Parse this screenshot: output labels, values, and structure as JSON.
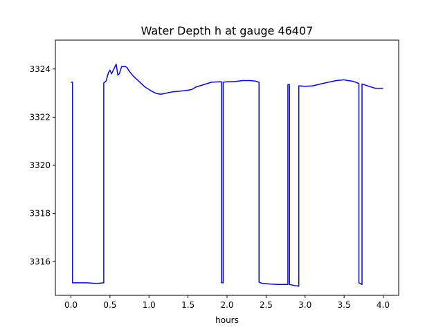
{
  "chart_data": {
    "type": "line",
    "title": "Water Depth h at gauge 46407",
    "xlabel": "hours",
    "ylabel": "",
    "xlim": [
      -0.2,
      4.2
    ],
    "ylim": [
      3314.6,
      3325.2
    ],
    "xticks": [
      0.0,
      0.5,
      1.0,
      1.5,
      2.0,
      2.5,
      3.0,
      3.5,
      4.0
    ],
    "xtick_labels": [
      "0.0",
      "0.5",
      "1.0",
      "1.5",
      "2.0",
      "2.5",
      "3.0",
      "3.5",
      "4.0"
    ],
    "yticks": [
      3316,
      3318,
      3320,
      3322,
      3324
    ],
    "ytick_labels": [
      "3316",
      "3318",
      "3320",
      "3322",
      "3324"
    ],
    "grid": false,
    "series": [
      {
        "color": "#0000ff",
        "x": [
          0.0,
          0.02,
          0.02,
          0.1,
          0.2,
          0.3,
          0.35,
          0.42,
          0.42,
          0.45,
          0.48,
          0.5,
          0.52,
          0.55,
          0.58,
          0.6,
          0.62,
          0.65,
          0.7,
          0.72,
          0.75,
          0.8,
          0.85,
          0.9,
          0.95,
          1.0,
          1.05,
          1.1,
          1.15,
          1.2,
          1.25,
          1.3,
          1.4,
          1.45,
          1.5,
          1.55,
          1.6,
          1.7,
          1.8,
          1.9,
          1.93,
          1.93,
          1.95,
          1.95,
          2.0,
          2.1,
          2.2,
          2.3,
          2.36,
          2.41,
          2.41,
          2.45,
          2.55,
          2.65,
          2.75,
          2.78,
          2.78,
          2.8,
          2.8,
          2.8,
          2.88,
          2.92,
          2.92,
          3.0,
          3.1,
          3.2,
          3.3,
          3.4,
          3.5,
          3.55,
          3.6,
          3.65,
          3.69,
          3.69,
          3.73,
          3.73,
          3.8,
          3.9,
          4.0
        ],
        "y": [
          3323.45,
          3323.45,
          3315.12,
          3315.12,
          3315.12,
          3315.1,
          3315.1,
          3315.12,
          3323.42,
          3323.5,
          3323.85,
          3323.95,
          3323.8,
          3324.0,
          3324.2,
          3323.75,
          3323.8,
          3324.1,
          3324.1,
          3324.05,
          3323.9,
          3323.7,
          3323.55,
          3323.4,
          3323.25,
          3323.15,
          3323.05,
          3322.98,
          3322.95,
          3322.98,
          3323.02,
          3323.05,
          3323.08,
          3323.1,
          3323.12,
          3323.15,
          3323.25,
          3323.35,
          3323.45,
          3323.47,
          3323.47,
          3315.12,
          3315.12,
          3323.45,
          3323.47,
          3323.48,
          3323.52,
          3323.52,
          3323.5,
          3323.45,
          3315.15,
          3315.1,
          3315.07,
          3315.05,
          3315.05,
          3315.05,
          3323.35,
          3323.35,
          3315.05,
          3315.05,
          3315.0,
          3314.98,
          3323.3,
          3323.28,
          3323.3,
          3323.38,
          3323.45,
          3323.52,
          3323.55,
          3323.52,
          3323.5,
          3323.45,
          3323.4,
          3315.12,
          3315.05,
          3323.38,
          3323.3,
          3323.2,
          3323.2
        ]
      }
    ]
  }
}
